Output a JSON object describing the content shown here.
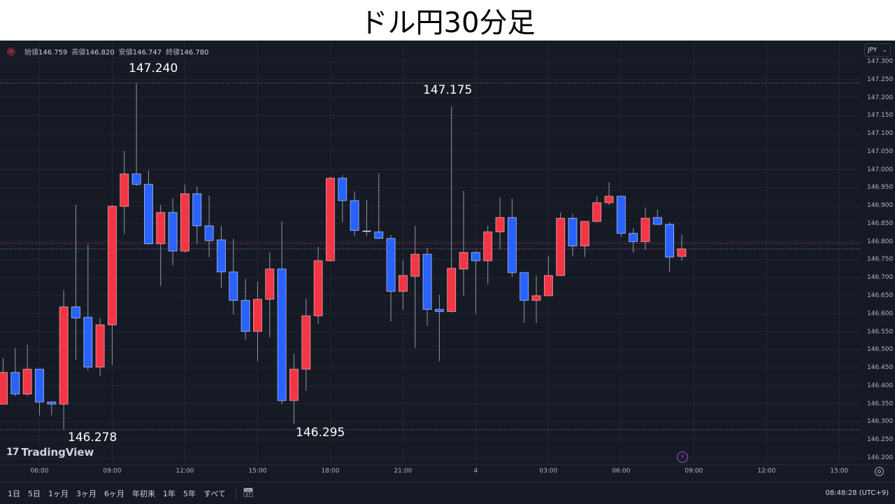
{
  "header": {
    "title": "ドル円30分足"
  },
  "legend": {
    "symbol_icon": "symbol-badge-icon",
    "open_label": "始値",
    "open": "146.759",
    "high_label": "高値",
    "high": "146.820",
    "low_label": "安値",
    "low": "146.747",
    "close_label": "終値",
    "close": "146.780"
  },
  "currency_select": {
    "value": "JPY"
  },
  "annotations": [
    "147.240",
    "147.175",
    "146.278",
    "146.295"
  ],
  "branding": {
    "logo_text": "TradingView"
  },
  "toolbar": {
    "ranges": [
      "1日",
      "5日",
      "1ヶ月",
      "3ヶ月",
      "6ヶ月",
      "年初来",
      "1年",
      "5年",
      "すべて"
    ],
    "clock": "08:48:28 (UTC+9)"
  },
  "colors": {
    "up": "#f23645",
    "down": "#2962ff",
    "wick": "#9598a1",
    "background": "#161a25"
  },
  "chart_data": {
    "type": "candlestick",
    "title": "ドル円30分足",
    "interval": "30m",
    "ylim": [
      146.175,
      147.325
    ],
    "yticks": [
      "147.300",
      "147.250",
      "147.200",
      "147.150",
      "147.100",
      "147.050",
      "147.000",
      "146.950",
      "146.900",
      "146.850",
      "146.800",
      "146.750",
      "146.700",
      "146.650",
      "146.600",
      "146.550",
      "146.500",
      "146.450",
      "146.400",
      "146.350",
      "146.300",
      "146.250",
      "146.200"
    ],
    "xticks": [
      "06:00",
      "09:00",
      "12:00",
      "15:00",
      "18:00",
      "21:00",
      "4",
      "03:00",
      "06:00",
      "09:00",
      "12:00",
      "15:00"
    ],
    "grid": true,
    "price_lines": [
      147.24,
      146.278,
      146.795,
      146.78
    ],
    "columns": [
      "time",
      "open",
      "high",
      "low",
      "close"
    ],
    "candles": [
      [
        "04:30",
        146.349,
        146.477,
        146.349,
        146.437
      ],
      [
        "05:00",
        146.437,
        146.505,
        146.371,
        146.377
      ],
      [
        "05:30",
        146.377,
        146.514,
        146.371,
        146.446
      ],
      [
        "06:00",
        146.446,
        146.446,
        146.318,
        146.355
      ],
      [
        "06:30",
        146.355,
        146.357,
        146.318,
        146.349
      ],
      [
        "07:00",
        146.349,
        146.666,
        146.278,
        146.619
      ],
      [
        "07:30",
        146.619,
        146.902,
        146.472,
        146.588
      ],
      [
        "08:00",
        146.59,
        146.792,
        146.442,
        146.452
      ],
      [
        "08:30",
        146.452,
        146.588,
        146.427,
        146.569
      ],
      [
        "09:00",
        146.569,
        146.902,
        146.458,
        146.898
      ],
      [
        "09:30",
        146.898,
        147.052,
        146.821,
        146.988
      ],
      [
        "10:00",
        146.988,
        147.24,
        146.955,
        146.959
      ],
      [
        "10:30",
        146.959,
        146.998,
        146.792,
        146.794
      ],
      [
        "11:00",
        146.794,
        146.902,
        146.677,
        146.881
      ],
      [
        "11:30",
        146.881,
        146.92,
        146.734,
        146.774
      ],
      [
        "12:00",
        146.774,
        146.959,
        146.77,
        146.933
      ],
      [
        "12:30",
        146.933,
        146.953,
        146.794,
        146.844
      ],
      [
        "13:00",
        146.844,
        146.928,
        146.757,
        146.803
      ],
      [
        "13:30",
        146.805,
        146.844,
        146.671,
        146.716
      ],
      [
        "14:00",
        146.716,
        146.807,
        146.598,
        146.637
      ],
      [
        "14:30",
        146.637,
        146.697,
        146.528,
        146.551
      ],
      [
        "15:00",
        146.551,
        146.689,
        146.468,
        146.64
      ],
      [
        "15:30",
        146.64,
        146.77,
        146.534,
        146.724
      ],
      [
        "16:00",
        146.724,
        146.856,
        146.349,
        146.359
      ],
      [
        "16:30",
        146.359,
        146.489,
        146.295,
        146.446
      ],
      [
        "17:00",
        146.446,
        146.642,
        146.386,
        146.594
      ],
      [
        "17:30",
        146.594,
        146.786,
        146.572,
        146.747
      ],
      [
        "18:00",
        146.747,
        146.98,
        146.745,
        146.976
      ],
      [
        "18:30",
        146.976,
        146.984,
        146.854,
        146.914
      ],
      [
        "19:00",
        146.914,
        146.939,
        146.815,
        146.831
      ],
      [
        "19:30",
        146.829,
        146.916,
        146.815,
        146.829
      ],
      [
        "20:00",
        146.827,
        146.99,
        146.807,
        146.809
      ],
      [
        "20:30",
        146.809,
        146.819,
        146.578,
        146.662
      ],
      [
        "21:00",
        146.662,
        146.749,
        146.611,
        146.706
      ],
      [
        "21:30",
        146.704,
        146.844,
        146.505,
        146.765
      ],
      [
        "22:00",
        146.765,
        146.782,
        146.567,
        146.612
      ],
      [
        "22:30",
        146.612,
        146.653,
        146.468,
        146.606
      ],
      [
        "23:00",
        146.606,
        147.175,
        146.604,
        146.726
      ],
      [
        "23:30",
        146.724,
        146.941,
        146.65,
        146.77
      ],
      [
        "00:00",
        146.77,
        146.774,
        146.6,
        146.747
      ],
      [
        "00:30",
        146.747,
        146.844,
        146.681,
        146.827
      ],
      [
        "01:00",
        146.827,
        146.922,
        146.778,
        146.867
      ],
      [
        "01:30",
        146.867,
        146.92,
        146.702,
        146.714
      ],
      [
        "02:00",
        146.714,
        146.714,
        146.574,
        146.637
      ],
      [
        "02:30",
        146.637,
        146.706,
        146.574,
        146.65
      ],
      [
        "03:00",
        146.65,
        146.761,
        146.648,
        146.706
      ],
      [
        "03:30",
        146.706,
        146.881,
        146.704,
        146.865
      ],
      [
        "04:00",
        146.865,
        146.877,
        146.759,
        146.788
      ],
      [
        "04:30",
        146.788,
        146.856,
        146.757,
        146.856
      ],
      [
        "05:00",
        146.856,
        146.926,
        146.854,
        146.908
      ],
      [
        "05:30",
        146.908,
        146.965,
        146.902,
        146.926
      ],
      [
        "06:00",
        146.926,
        146.926,
        146.813,
        146.823
      ],
      [
        "06:30",
        146.823,
        146.838,
        146.77,
        146.8
      ],
      [
        "07:00",
        146.8,
        146.895,
        146.778,
        146.865
      ],
      [
        "07:30",
        146.867,
        146.889,
        146.848,
        146.848
      ],
      [
        "08:00",
        146.848,
        146.854,
        146.716,
        146.757
      ],
      [
        "08:30",
        146.759,
        146.82,
        146.747,
        146.78
      ]
    ]
  }
}
